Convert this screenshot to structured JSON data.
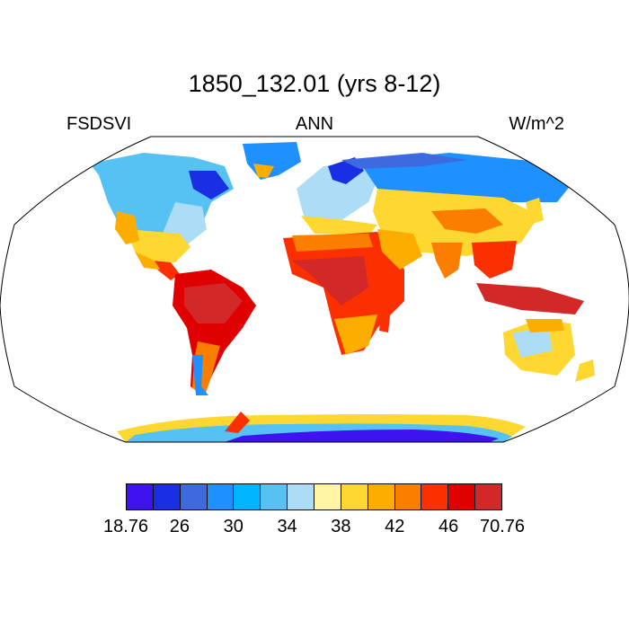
{
  "title": "1850_132.01 (yrs 8-12)",
  "left_label": "FSDSVI",
  "center_label": "ANN",
  "right_label": "W/m^2",
  "colorbar": {
    "colors": [
      "#3f12f0",
      "#1a2fe4",
      "#3e6ae0",
      "#1e90ff",
      "#00b5ff",
      "#56c2f4",
      "#acdcf6",
      "#fff5a2",
      "#fed830",
      "#fcad00",
      "#fb7e00",
      "#fc2f00",
      "#e00000",
      "#d22828"
    ],
    "labels": [
      "18.76",
      "26",
      "30",
      "34",
      "38",
      "42",
      "46",
      "70.76"
    ]
  },
  "map": {
    "projection": "Robinson",
    "variable_range": [
      18.76,
      70.76
    ]
  }
}
